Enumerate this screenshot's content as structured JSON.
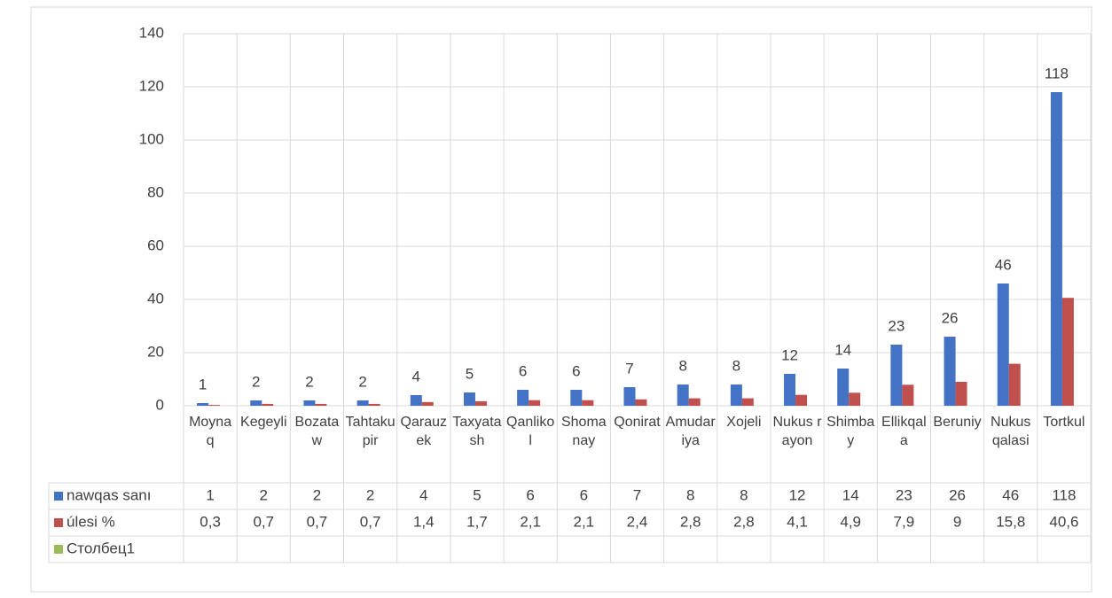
{
  "chart_data": {
    "type": "bar",
    "categories": [
      "Moynaq",
      "Kegeyli",
      "Bozataw",
      "Tahtakupir",
      "Qarauzek",
      "Taxyatash",
      "Qanlikol",
      "Shomanay",
      "Qonirat",
      "Amudariya",
      "Xojeli",
      "Nukus rayon",
      "Shimbay",
      "Ellikqala",
      "Beruniy",
      "Nukus qalasi",
      "Tortkul"
    ],
    "series": [
      {
        "name": "nawqas sanı",
        "color": "#4472c4",
        "values": [
          1,
          2,
          2,
          2,
          4,
          5,
          6,
          6,
          7,
          8,
          8,
          12,
          14,
          23,
          26,
          46,
          118
        ]
      },
      {
        "name": "úlesi %",
        "color": "#c0504d",
        "values": [
          0.3,
          0.7,
          0.7,
          0.7,
          1.4,
          1.7,
          2.1,
          2.1,
          2.4,
          2.8,
          2.8,
          4.1,
          4.9,
          7.9,
          9,
          15.8,
          40.6
        ],
        "value_labels": [
          "0,3",
          "0,7",
          "0,7",
          "0,7",
          "1,4",
          "1,7",
          "2,1",
          "2,1",
          "2,4",
          "2,8",
          "2,8",
          "4,1",
          "4,9",
          "7,9",
          "9",
          "15,8",
          "40,6"
        ]
      },
      {
        "name": "Столбец1",
        "color": "#9bbb59",
        "values": [
          null,
          null,
          null,
          null,
          null,
          null,
          null,
          null,
          null,
          null,
          null,
          null,
          null,
          null,
          null,
          null,
          null
        ]
      }
    ],
    "ylim": [
      0,
      140
    ],
    "yticks": [
      0,
      20,
      40,
      60,
      80,
      100,
      120,
      140
    ],
    "grid": true
  }
}
